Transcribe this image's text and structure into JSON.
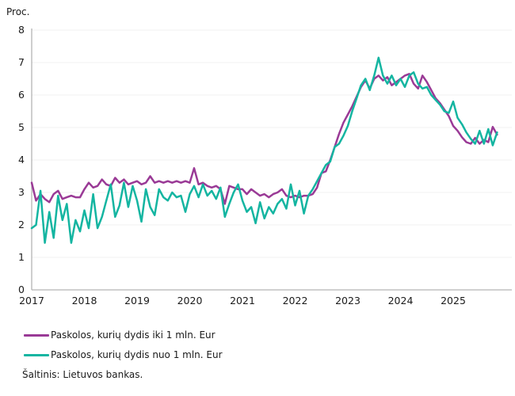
{
  "source": "Šaltinis: Lietuvos bankas.",
  "chart_data": {
    "type": "line",
    "unit_label": "Proc.",
    "x_start": "2017-01",
    "x_frequency": "monthly",
    "x_tick_labels": [
      "2017",
      "2018",
      "2019",
      "2020",
      "2021",
      "2022",
      "2023",
      "2024",
      "2025"
    ],
    "y_ticks": [
      0,
      1,
      2,
      3,
      4,
      5,
      6,
      7,
      8
    ],
    "ylim": [
      0,
      8
    ],
    "grid": true,
    "legend_position": "bottom-left",
    "axis_color": "#b3b3b3",
    "grid_color": "#f0f0f0",
    "series": [
      {
        "name": "Paskolos, kurių dydis iki 1 mln. Eur",
        "color": "#9a3a96",
        "values": [
          3.3,
          2.75,
          2.95,
          2.8,
          2.7,
          2.95,
          3.05,
          2.8,
          2.85,
          2.9,
          2.85,
          2.85,
          3.1,
          3.3,
          3.15,
          3.2,
          3.4,
          3.25,
          3.2,
          3.45,
          3.3,
          3.4,
          3.25,
          3.3,
          3.35,
          3.25,
          3.3,
          3.5,
          3.3,
          3.35,
          3.3,
          3.35,
          3.3,
          3.35,
          3.3,
          3.35,
          3.3,
          3.75,
          3.25,
          3.3,
          3.2,
          3.15,
          3.2,
          3.1,
          2.65,
          3.2,
          3.15,
          3.1,
          3.1,
          2.95,
          3.1,
          3.0,
          2.9,
          2.95,
          2.85,
          2.95,
          3.0,
          3.1,
          2.9,
          2.85,
          2.9,
          2.85,
          2.9,
          2.9,
          2.95,
          3.15,
          3.6,
          3.65,
          4.0,
          4.4,
          4.8,
          5.15,
          5.4,
          5.65,
          5.95,
          6.25,
          6.45,
          6.2,
          6.5,
          6.6,
          6.45,
          6.55,
          6.3,
          6.4,
          6.5,
          6.6,
          6.65,
          6.35,
          6.2,
          6.6,
          6.4,
          6.15,
          5.9,
          5.75,
          5.55,
          5.35,
          5.05,
          4.9,
          4.7,
          4.55,
          4.5,
          4.68,
          4.5,
          4.62,
          4.55,
          5.02,
          4.78
        ]
      },
      {
        "name": "Paskolos, kurių dydis nuo 1 mln. Eur",
        "color": "#14b5a1",
        "values": [
          1.9,
          2.0,
          3.05,
          1.45,
          2.4,
          1.6,
          2.9,
          2.15,
          2.65,
          1.45,
          2.15,
          1.8,
          2.45,
          1.9,
          2.95,
          1.9,
          2.25,
          2.75,
          3.25,
          2.25,
          2.6,
          3.3,
          2.55,
          3.2,
          2.75,
          2.1,
          3.1,
          2.55,
          2.3,
          3.1,
          2.85,
          2.75,
          3.0,
          2.85,
          2.9,
          2.4,
          2.95,
          3.2,
          2.85,
          3.25,
          2.9,
          3.05,
          2.8,
          3.15,
          2.25,
          2.65,
          3.0,
          3.25,
          2.75,
          2.4,
          2.55,
          2.05,
          2.7,
          2.2,
          2.55,
          2.35,
          2.65,
          2.8,
          2.5,
          3.25,
          2.6,
          3.05,
          2.35,
          2.9,
          3.1,
          3.35,
          3.6,
          3.85,
          3.95,
          4.4,
          4.5,
          4.75,
          5.05,
          5.5,
          5.9,
          6.3,
          6.5,
          6.15,
          6.6,
          7.15,
          6.6,
          6.35,
          6.6,
          6.3,
          6.5,
          6.25,
          6.6,
          6.7,
          6.35,
          6.2,
          6.25,
          6.0,
          5.85,
          5.7,
          5.5,
          5.45,
          5.8,
          5.3,
          5.1,
          4.85,
          4.65,
          4.5,
          4.9,
          4.5,
          4.95,
          4.45,
          4.85
        ]
      }
    ]
  }
}
